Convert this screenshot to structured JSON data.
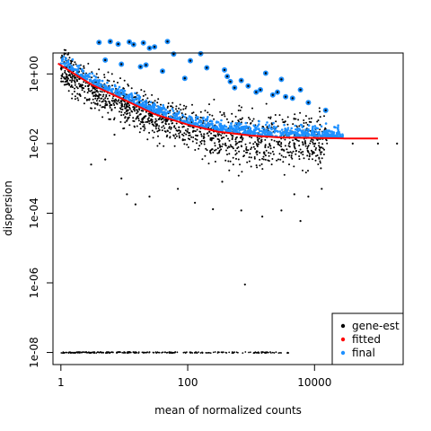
{
  "chart_data": {
    "type": "scatter",
    "title": "",
    "xlabel": "mean of normalized counts",
    "ylabel": "dispersion",
    "x_scale": "log10",
    "y_scale": "log10",
    "xlim": [
      0.75,
      250000
    ],
    "ylim": [
      4.5e-09,
      4
    ],
    "x_ticks": [
      {
        "value": 1,
        "label": "1"
      },
      {
        "value": 100,
        "label": "100"
      },
      {
        "value": 10000,
        "label": "10000"
      }
    ],
    "y_ticks": [
      {
        "value": 1e-08,
        "label": "1e-08"
      },
      {
        "value": 1e-06,
        "label": "1e-06"
      },
      {
        "value": 0.0001,
        "label": "1e-04"
      },
      {
        "value": 0.01,
        "label": "1e-02"
      },
      {
        "value": 1,
        "label": "1e+00"
      }
    ],
    "legend": {
      "placement": "bottom-right",
      "entries": [
        {
          "label": "gene-est",
          "color": "#000000"
        },
        {
          "label": "fitted",
          "color": "#ff0000"
        },
        {
          "label": "final",
          "color": "#1e90ff"
        }
      ]
    },
    "series": [
      {
        "name": "fitted",
        "color": "#ff0000",
        "points": [
          [
            0.9,
            2.0
          ],
          [
            1.5,
            1.1
          ],
          [
            3,
            0.5
          ],
          [
            10,
            0.18
          ],
          [
            30,
            0.07
          ],
          [
            100,
            0.035
          ],
          [
            300,
            0.022
          ],
          [
            1000,
            0.017
          ],
          [
            3000,
            0.015
          ],
          [
            10000,
            0.0145
          ],
          [
            30000,
            0.014
          ],
          [
            100000,
            0.014
          ]
        ]
      },
      {
        "name": "final-outliers",
        "color": "#1e90ff",
        "points": [
          [
            4,
            8.0
          ],
          [
            6,
            8.5
          ],
          [
            8,
            7.2
          ],
          [
            12,
            8.3
          ],
          [
            14,
            7.0
          ],
          [
            20,
            7.8
          ],
          [
            25,
            5.5
          ],
          [
            30,
            6.0
          ],
          [
            48,
            8.5
          ],
          [
            60,
            3.7
          ],
          [
            110,
            2.4
          ],
          [
            160,
            3.8
          ],
          [
            200,
            1.5
          ],
          [
            380,
            1.3
          ],
          [
            420,
            0.85
          ],
          [
            470,
            0.6
          ],
          [
            550,
            0.4
          ],
          [
            700,
            0.65
          ],
          [
            900,
            0.45
          ],
          [
            1200,
            0.3
          ],
          [
            1400,
            0.35
          ],
          [
            1700,
            1.05
          ],
          [
            2200,
            0.25
          ],
          [
            2600,
            0.3
          ],
          [
            3000,
            0.7
          ],
          [
            3500,
            0.22
          ],
          [
            4500,
            0.2
          ],
          [
            6000,
            0.35
          ],
          [
            8000,
            0.15
          ],
          [
            15000,
            0.09
          ],
          [
            5,
            2.5
          ],
          [
            9,
            1.9
          ],
          [
            18,
            1.6
          ],
          [
            22,
            1.8
          ],
          [
            40,
            1.2
          ],
          [
            90,
            0.75
          ]
        ]
      },
      {
        "name": "gene-est-outliers",
        "color": "#000000",
        "points": [
          [
            2,
            0.25
          ],
          [
            3.5,
            0.14
          ],
          [
            6,
            0.05
          ],
          [
            7,
            0.018
          ],
          [
            5,
            0.0035
          ],
          [
            3,
            0.0025
          ],
          [
            9,
            0.001
          ],
          [
            11,
            0.00035
          ],
          [
            15,
            0.00018
          ],
          [
            25,
            0.0003
          ],
          [
            70,
            0.0005
          ],
          [
            130,
            0.0002
          ],
          [
            250,
            0.00013
          ],
          [
            350,
            0.0008
          ],
          [
            700,
            0.00012
          ],
          [
            1500,
            8e-05
          ],
          [
            3000,
            0.00012
          ],
          [
            4800,
            0.00035
          ],
          [
            6000,
            6e-05
          ],
          [
            800,
            9e-07
          ],
          [
            1.2,
            1.5
          ],
          [
            8000,
            0.0003
          ],
          [
            13000,
            0.0005
          ],
          [
            40000,
            0.01
          ],
          [
            100000,
            0.01
          ],
          [
            200000,
            0.01
          ]
        ]
      }
    ]
  }
}
